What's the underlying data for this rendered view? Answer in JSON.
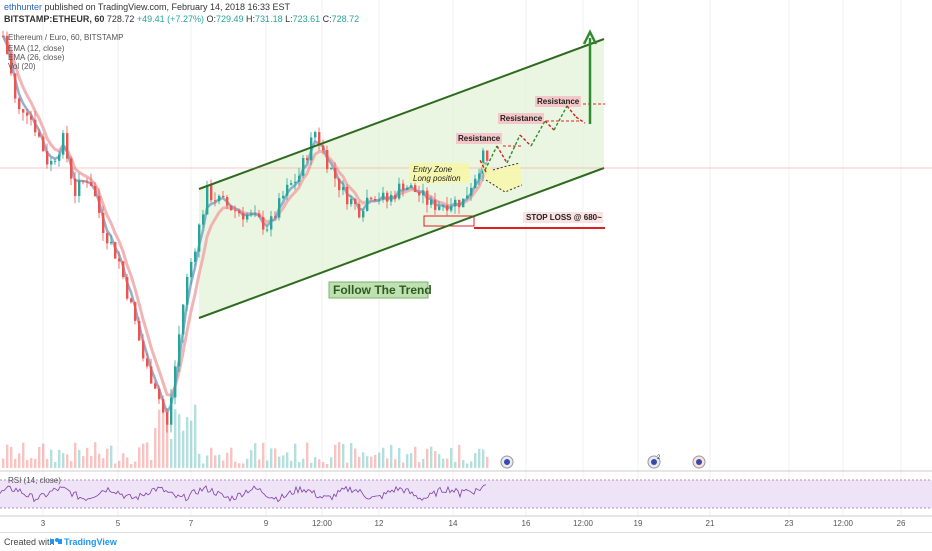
{
  "header": {
    "author": "ethhunter",
    "published": "published on TradingView.com, February 14, 2018 16:33 EST",
    "ticker_line": "BITSTAMP:ETHEUR, 60",
    "price": "728.72",
    "change": "+49.41 (+7.27%)",
    "o_label": "O:",
    "o_val": "729.49",
    "h_label": "H:",
    "h_val": "731.18",
    "l_label": "L:",
    "l_val": "723.61",
    "c_label": "C:",
    "c_val": "728.72"
  },
  "legend": {
    "title": "Ethereum / Euro, 60, BITSTAMP",
    "ema12": "EMA (12, close)",
    "ema26": "EMA (26, close)",
    "vol": "Vol (20)",
    "rsi": "RSI (14, close)"
  },
  "annotations": {
    "entry1": "Entry Zone",
    "entry2": "Long position",
    "resistance1": "Resistance",
    "resistance2": "Resistance",
    "resistance3": "Resistance",
    "stop_loss": "STOP LOSS @ 680~",
    "trend": "Follow The Trend"
  },
  "footer": {
    "created": "Created with",
    "brand": "TradingView"
  },
  "colors": {
    "up": "#26a69a",
    "down": "#ef5350",
    "ema12": "#7fa3c9",
    "ema26": "#f0a8a8",
    "channel": "#2e6b1f",
    "channel_fill": "#e3f2d6",
    "stop": "#e02020",
    "rsi_line": "#7b3fa8",
    "rsi_band": "#efe3f7"
  },
  "chart_data": {
    "type": "candlestick",
    "x_ticks": [
      "3",
      "5",
      "7",
      "9",
      "12:00",
      "12",
      "14",
      "16",
      "12:00",
      "19",
      "21",
      "23",
      "12:00",
      "26"
    ],
    "price_anchors": [
      {
        "t": 0,
        "p": 880
      },
      {
        "t": 6,
        "p": 850
      },
      {
        "t": 14,
        "p": 790
      },
      {
        "t": 22,
        "p": 800
      },
      {
        "t": 34,
        "p": 770
      },
      {
        "t": 46,
        "p": 730
      },
      {
        "t": 60,
        "p": 760
      },
      {
        "t": 72,
        "p": 700
      },
      {
        "t": 86,
        "p": 720
      },
      {
        "t": 100,
        "p": 660
      },
      {
        "t": 116,
        "p": 620
      },
      {
        "t": 130,
        "p": 560
      },
      {
        "t": 142,
        "p": 500
      },
      {
        "t": 152,
        "p": 480
      },
      {
        "t": 164,
        "p": 430
      },
      {
        "t": 172,
        "p": 500
      },
      {
        "t": 182,
        "p": 590
      },
      {
        "t": 192,
        "p": 640
      },
      {
        "t": 204,
        "p": 700
      },
      {
        "t": 216,
        "p": 690
      },
      {
        "t": 232,
        "p": 680
      },
      {
        "t": 250,
        "p": 670
      },
      {
        "t": 266,
        "p": 660
      },
      {
        "t": 282,
        "p": 700
      },
      {
        "t": 296,
        "p": 720
      },
      {
        "t": 312,
        "p": 770
      },
      {
        "t": 326,
        "p": 730
      },
      {
        "t": 340,
        "p": 700
      },
      {
        "t": 356,
        "p": 680
      },
      {
        "t": 368,
        "p": 700
      },
      {
        "t": 384,
        "p": 690
      },
      {
        "t": 400,
        "p": 710
      },
      {
        "t": 414,
        "p": 700
      },
      {
        "t": 428,
        "p": 685
      },
      {
        "t": 444,
        "p": 688
      },
      {
        "t": 460,
        "p": 690
      },
      {
        "t": 472,
        "p": 720
      },
      {
        "t": 480,
        "p": 740
      },
      {
        "t": 486,
        "p": 729
      }
    ],
    "resistance_levels": [
      752,
      781,
      805
    ],
    "stop_loss_level": 680,
    "rsi_range": [
      0,
      100
    ]
  }
}
